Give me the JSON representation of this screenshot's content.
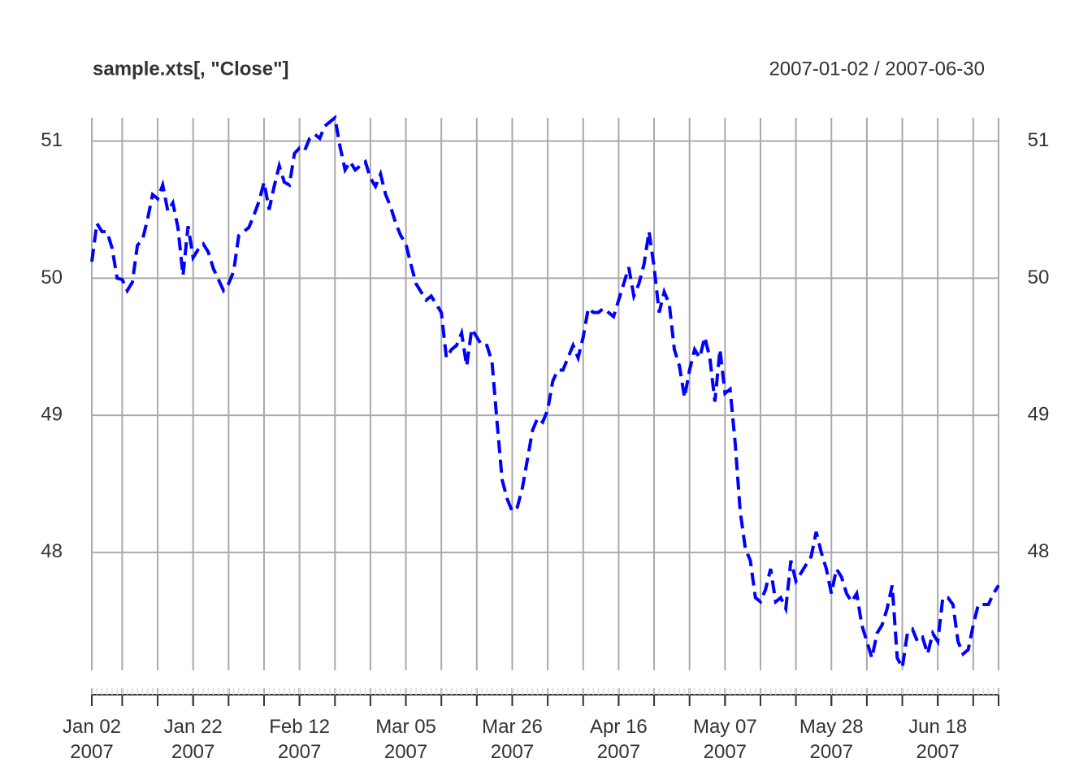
{
  "chart_data": {
    "type": "line",
    "title": "sample.xts[, \"Close\"]",
    "subtitle": "2007-01-02 / 2007-06-30",
    "x": [
      "2007-01-02",
      "2007-01-03",
      "2007-01-04",
      "2007-01-05",
      "2007-01-06",
      "2007-01-07",
      "2007-01-08",
      "2007-01-09",
      "2007-01-10",
      "2007-01-11",
      "2007-01-12",
      "2007-01-13",
      "2007-01-14",
      "2007-01-15",
      "2007-01-16",
      "2007-01-17",
      "2007-01-18",
      "2007-01-19",
      "2007-01-20",
      "2007-01-21",
      "2007-01-22",
      "2007-01-23",
      "2007-01-24",
      "2007-01-25",
      "2007-01-26",
      "2007-01-27",
      "2007-01-28",
      "2007-01-29",
      "2007-01-30",
      "2007-01-31",
      "2007-02-01",
      "2007-02-02",
      "2007-02-03",
      "2007-02-04",
      "2007-02-05",
      "2007-02-06",
      "2007-02-07",
      "2007-02-08",
      "2007-02-09",
      "2007-02-10",
      "2007-02-11",
      "2007-02-12",
      "2007-02-13",
      "2007-02-14",
      "2007-02-15",
      "2007-02-16",
      "2007-02-17",
      "2007-02-18",
      "2007-02-19",
      "2007-02-20",
      "2007-02-21",
      "2007-02-22",
      "2007-02-23",
      "2007-02-24",
      "2007-02-25",
      "2007-02-26",
      "2007-02-27",
      "2007-02-28",
      "2007-03-01",
      "2007-03-02",
      "2007-03-03",
      "2007-03-04",
      "2007-03-05",
      "2007-03-06",
      "2007-03-07",
      "2007-03-08",
      "2007-03-09",
      "2007-03-10",
      "2007-03-11",
      "2007-03-12",
      "2007-03-13",
      "2007-03-14",
      "2007-03-15",
      "2007-03-16",
      "2007-03-17",
      "2007-03-18",
      "2007-03-19",
      "2007-03-20",
      "2007-03-21",
      "2007-03-22",
      "2007-03-23",
      "2007-03-24",
      "2007-03-25",
      "2007-03-26",
      "2007-03-27",
      "2007-03-28",
      "2007-03-29",
      "2007-03-30",
      "2007-03-31",
      "2007-04-01",
      "2007-04-02",
      "2007-04-03",
      "2007-04-04",
      "2007-04-05",
      "2007-04-06",
      "2007-04-07",
      "2007-04-08",
      "2007-04-09",
      "2007-04-10",
      "2007-04-11",
      "2007-04-12",
      "2007-04-13",
      "2007-04-14",
      "2007-04-15",
      "2007-04-16",
      "2007-04-17",
      "2007-04-18",
      "2007-04-19",
      "2007-04-20",
      "2007-04-21",
      "2007-04-22",
      "2007-04-23",
      "2007-04-24",
      "2007-04-25",
      "2007-04-26",
      "2007-04-27",
      "2007-04-28",
      "2007-04-29",
      "2007-04-30",
      "2007-05-01",
      "2007-05-02",
      "2007-05-03",
      "2007-05-04",
      "2007-05-05",
      "2007-05-06",
      "2007-05-07",
      "2007-05-08",
      "2007-05-09",
      "2007-05-10",
      "2007-05-11",
      "2007-05-12",
      "2007-05-13",
      "2007-05-14",
      "2007-05-15",
      "2007-05-16",
      "2007-05-17",
      "2007-05-18",
      "2007-05-19",
      "2007-05-20",
      "2007-05-21",
      "2007-05-22",
      "2007-05-23",
      "2007-05-24",
      "2007-05-25",
      "2007-05-26",
      "2007-05-27",
      "2007-05-28",
      "2007-05-29",
      "2007-05-30",
      "2007-05-31",
      "2007-06-01",
      "2007-06-02",
      "2007-06-03",
      "2007-06-04",
      "2007-06-05",
      "2007-06-06",
      "2007-06-07",
      "2007-06-08",
      "2007-06-09",
      "2007-06-10",
      "2007-06-11",
      "2007-06-12",
      "2007-06-13",
      "2007-06-14",
      "2007-06-15",
      "2007-06-16",
      "2007-06-17",
      "2007-06-18",
      "2007-06-19",
      "2007-06-20",
      "2007-06-21",
      "2007-06-22",
      "2007-06-23",
      "2007-06-24",
      "2007-06-25",
      "2007-06-26",
      "2007-06-27",
      "2007-06-28",
      "2007-06-29",
      "2007-06-30"
    ],
    "series": [
      {
        "name": "Close",
        "color": "#0000ff",
        "values": [
          50.12,
          50.4,
          50.34,
          50.34,
          50.22,
          50.0,
          49.99,
          49.91,
          49.97,
          50.24,
          50.28,
          50.43,
          50.61,
          50.58,
          50.68,
          50.49,
          50.55,
          50.37,
          50.02,
          50.38,
          50.15,
          50.21,
          50.25,
          50.19,
          50.07,
          49.99,
          49.91,
          49.96,
          50.05,
          50.31,
          50.34,
          50.37,
          50.46,
          50.56,
          50.7,
          50.5,
          50.67,
          50.82,
          50.7,
          50.68,
          50.91,
          50.95,
          50.93,
          51.02,
          51.05,
          51.02,
          51.11,
          51.14,
          51.17,
          50.96,
          50.79,
          50.85,
          50.79,
          50.82,
          50.85,
          50.73,
          50.67,
          50.76,
          50.61,
          50.52,
          50.4,
          50.31,
          50.25,
          50.1,
          49.96,
          49.9,
          49.84,
          49.87,
          49.81,
          49.75,
          49.42,
          49.48,
          49.51,
          49.6,
          49.36,
          49.63,
          49.57,
          49.51,
          49.51,
          49.39,
          48.95,
          48.53,
          48.39,
          48.3,
          48.33,
          48.47,
          48.68,
          48.89,
          48.98,
          48.95,
          49.04,
          49.25,
          49.33,
          49.33,
          49.42,
          49.51,
          49.42,
          49.57,
          49.78,
          49.75,
          49.75,
          49.78,
          49.75,
          49.72,
          49.84,
          49.96,
          50.08,
          49.87,
          49.96,
          50.1,
          50.34,
          50.08,
          49.75,
          49.9,
          49.81,
          49.48,
          49.36,
          49.13,
          49.33,
          49.48,
          49.42,
          49.57,
          49.42,
          49.1,
          49.48,
          49.16,
          49.19,
          48.8,
          48.3,
          48.03,
          47.94,
          47.67,
          47.64,
          47.73,
          47.88,
          47.64,
          47.67,
          47.59,
          47.94,
          47.79,
          47.85,
          47.91,
          47.97,
          48.15,
          48.0,
          47.88,
          47.7,
          47.88,
          47.82,
          47.7,
          47.64,
          47.7,
          47.47,
          47.35,
          47.23,
          47.41,
          47.47,
          47.59,
          47.76,
          47.23,
          47.16,
          47.41,
          47.44,
          47.35,
          47.38,
          47.26,
          47.41,
          47.35,
          47.67,
          47.67,
          47.62,
          47.35,
          47.26,
          47.29,
          47.47,
          47.62,
          47.62,
          47.62,
          47.7,
          47.76
        ]
      }
    ],
    "xlim": [
      "2007-01-02",
      "2007-06-30"
    ],
    "xticks": [
      {
        "value": "2007-01-02",
        "label": "Jan 02\n2007"
      },
      {
        "value": "2007-01-22",
        "label": "Jan 22\n2007"
      },
      {
        "value": "2007-02-12",
        "label": "Feb 12\n2007"
      },
      {
        "value": "2007-03-05",
        "label": "Mar 05\n2007"
      },
      {
        "value": "2007-03-26",
        "label": "Mar 26\n2007"
      },
      {
        "value": "2007-04-16",
        "label": "Apr 16\n2007"
      },
      {
        "value": "2007-05-07",
        "label": "May 07\n2007"
      },
      {
        "value": "2007-05-28",
        "label": "May 28\n2007"
      },
      {
        "value": "2007-06-18",
        "label": "Jun 18\n2007"
      }
    ],
    "xgrid": [
      "2007-01-02",
      "2007-01-08",
      "2007-01-15",
      "2007-01-22",
      "2007-01-29",
      "2007-02-05",
      "2007-02-12",
      "2007-02-19",
      "2007-02-26",
      "2007-03-05",
      "2007-03-12",
      "2007-03-19",
      "2007-03-26",
      "2007-04-02",
      "2007-04-09",
      "2007-04-16",
      "2007-04-23",
      "2007-04-30",
      "2007-05-07",
      "2007-05-14",
      "2007-05-21",
      "2007-05-28",
      "2007-06-04",
      "2007-06-11",
      "2007-06-18",
      "2007-06-25",
      "2007-06-30"
    ],
    "ylim": [
      47.14,
      51.17
    ],
    "yticks": [
      48,
      49,
      50,
      51
    ],
    "grid": true,
    "line_style": "dashed"
  }
}
